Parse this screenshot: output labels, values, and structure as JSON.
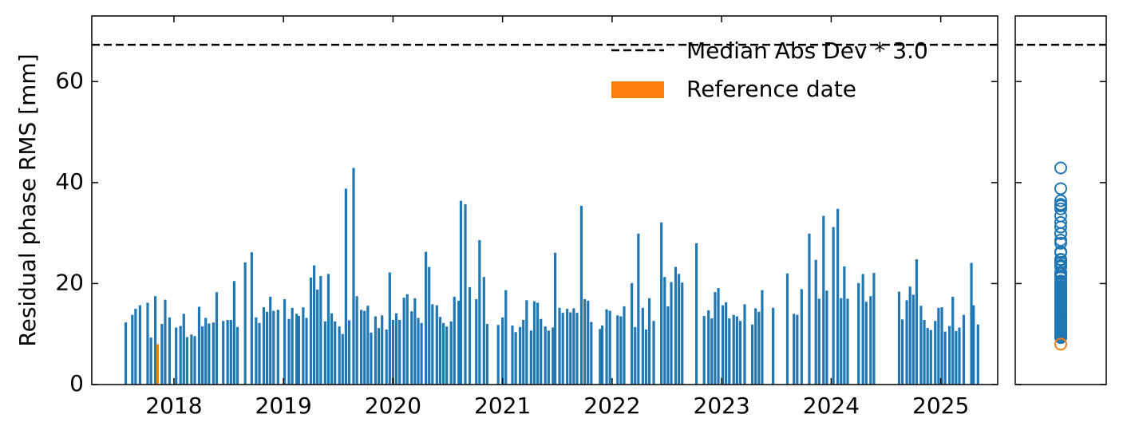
{
  "chart_data": {
    "type": "bar",
    "ylabel": "Residual phase RMS [mm]",
    "xlim": [
      2017.25,
      2025.52
    ],
    "xticks": [
      2018,
      2019,
      2020,
      2021,
      2022,
      2023,
      2024,
      2025
    ],
    "ylim": [
      0,
      73
    ],
    "yticks": [
      0,
      20,
      40,
      60
    ],
    "bars": {
      "color": "#1f77b4",
      "x": [
        2017.56,
        2017.62,
        2017.65,
        2017.69,
        2017.76,
        2017.79,
        2017.83,
        2017.89,
        2017.92,
        2017.96,
        2018.02,
        2018.06,
        2018.09,
        2018.12,
        2018.16,
        2018.19,
        2018.23,
        2018.26,
        2018.29,
        2018.32,
        2018.36,
        2018.39,
        2018.45,
        2018.49,
        2018.52,
        2018.55,
        2018.58,
        2018.65,
        2018.71,
        2018.75,
        2018.78,
        2018.82,
        2018.85,
        2018.88,
        2018.91,
        2018.95,
        2019.01,
        2019.05,
        2019.08,
        2019.12,
        2019.14,
        2019.18,
        2019.21,
        2019.25,
        2019.28,
        2019.31,
        2019.34,
        2019.38,
        2019.41,
        2019.44,
        2019.47,
        2019.51,
        2019.54,
        2019.57,
        2019.6,
        2019.64,
        2019.67,
        2019.71,
        2019.74,
        2019.77,
        2019.8,
        2019.84,
        2019.87,
        2019.9,
        2019.94,
        2019.97,
        2020.0,
        2020.03,
        2020.06,
        2020.1,
        2020.13,
        2020.17,
        2020.2,
        2020.23,
        2020.26,
        2020.3,
        2020.33,
        2020.36,
        2020.4,
        2020.43,
        2020.46,
        2020.49,
        2020.53,
        2020.56,
        2020.6,
        2020.62,
        2020.66,
        2020.7,
        2020.76,
        2020.79,
        2020.83,
        2020.86,
        2020.96,
        2021.0,
        2021.03,
        2021.09,
        2021.12,
        2021.16,
        2021.19,
        2021.22,
        2021.26,
        2021.29,
        2021.32,
        2021.35,
        2021.39,
        2021.42,
        2021.46,
        2021.48,
        2021.52,
        2021.55,
        2021.59,
        2021.62,
        2021.65,
        2021.68,
        2021.72,
        2021.75,
        2021.78,
        2021.81,
        2021.89,
        2021.91,
        2021.95,
        2021.98,
        2022.05,
        2022.08,
        2022.11,
        2022.18,
        2022.21,
        2022.24,
        2022.28,
        2022.31,
        2022.34,
        2022.38,
        2022.45,
        2022.48,
        2022.51,
        2022.54,
        2022.58,
        2022.61,
        2022.64,
        2022.77,
        2022.84,
        2022.88,
        2022.91,
        2022.94,
        2022.97,
        2023.01,
        2023.04,
        2023.07,
        2023.11,
        2023.14,
        2023.17,
        2023.21,
        2023.28,
        2023.31,
        2023.34,
        2023.37,
        2023.47,
        2023.6,
        2023.66,
        2023.69,
        2023.73,
        2023.8,
        2023.86,
        2023.89,
        2023.93,
        2023.96,
        2024.02,
        2024.06,
        2024.09,
        2024.12,
        2024.15,
        2024.25,
        2024.29,
        2024.32,
        2024.36,
        2024.39,
        2024.62,
        2024.65,
        2024.69,
        2024.72,
        2024.75,
        2024.78,
        2024.82,
        2024.85,
        2024.88,
        2024.91,
        2024.95,
        2024.98,
        2025.01,
        2025.04,
        2025.08,
        2025.11,
        2025.14,
        2025.17,
        2025.21,
        2025.28,
        2025.3,
        2025.34
      ],
      "values": [
        12.3,
        13.8,
        15,
        15.7,
        16.2,
        9.3,
        17.5,
        12,
        16.8,
        13.3,
        11.3,
        11.6,
        14,
        9.4,
        9.9,
        9.6,
        15.4,
        11.5,
        13.2,
        12.1,
        12.3,
        18.3,
        12.6,
        12.8,
        12.8,
        20.5,
        11.4,
        24.2,
        26.2,
        13.3,
        12.2,
        15.3,
        14.4,
        17.4,
        14.6,
        14.8,
        16.9,
        13,
        15.2,
        14,
        13.6,
        15.3,
        13.2,
        21.2,
        23.6,
        18.8,
        21.5,
        12.5,
        21.9,
        14.1,
        12.5,
        11.5,
        10,
        38.8,
        12.7,
        42.9,
        17.5,
        14.8,
        14.6,
        15.6,
        10.3,
        13.5,
        11.2,
        13.7,
        10.9,
        22.2,
        12.8,
        14.1,
        12.8,
        17.2,
        17.9,
        14.5,
        17.1,
        13.2,
        12.2,
        26.3,
        23.3,
        15.9,
        15.7,
        13.4,
        12.2,
        11.5,
        12.5,
        17.4,
        16.6,
        36.4,
        35.7,
        19.3,
        16.9,
        28.6,
        21.3,
        12,
        11.8,
        13.3,
        18.7,
        11.7,
        10.4,
        11.4,
        12.8,
        16.7,
        10.7,
        16.5,
        16.2,
        13,
        11.5,
        10.7,
        11.3,
        26.1,
        15.2,
        14.2,
        15,
        14.3,
        15.1,
        14.2,
        35.4,
        16.9,
        16.6,
        12.4,
        11,
        11.7,
        14.9,
        14.6,
        13.7,
        13.5,
        15.5,
        20.1,
        11.4,
        29.9,
        15.2,
        10.9,
        17.1,
        12.6,
        32.1,
        21.3,
        15.5,
        20.3,
        23.3,
        21.9,
        20.2,
        28,
        13.6,
        14.7,
        13.1,
        18.3,
        19.1,
        15.7,
        16.3,
        13.1,
        13.8,
        13.5,
        12.6,
        15.9,
        11.9,
        15.1,
        14.4,
        18.7,
        15.2,
        22,
        14,
        13.8,
        18.9,
        29.9,
        24.7,
        17,
        33.4,
        18.6,
        31.2,
        34.8,
        17.1,
        23.4,
        17,
        20.1,
        21.9,
        16.4,
        17.5,
        22.1,
        18.4,
        12.9,
        16.7,
        19.4,
        17.8,
        24.8,
        15.6,
        12.8,
        11.2,
        10.8,
        12.6,
        15.2,
        15.3,
        10.5,
        11.6,
        17.4,
        10.6,
        11.3,
        13.8,
        24.1,
        15.7,
        11.9
      ]
    },
    "reference": {
      "name": "Reference date",
      "color": "#ff7f0e",
      "x": [
        2017.85
      ],
      "values": [
        8
      ]
    },
    "threshold": {
      "name": "Median Abs Dev * 3.0",
      "value": 67.3,
      "color": "#000000"
    }
  }
}
